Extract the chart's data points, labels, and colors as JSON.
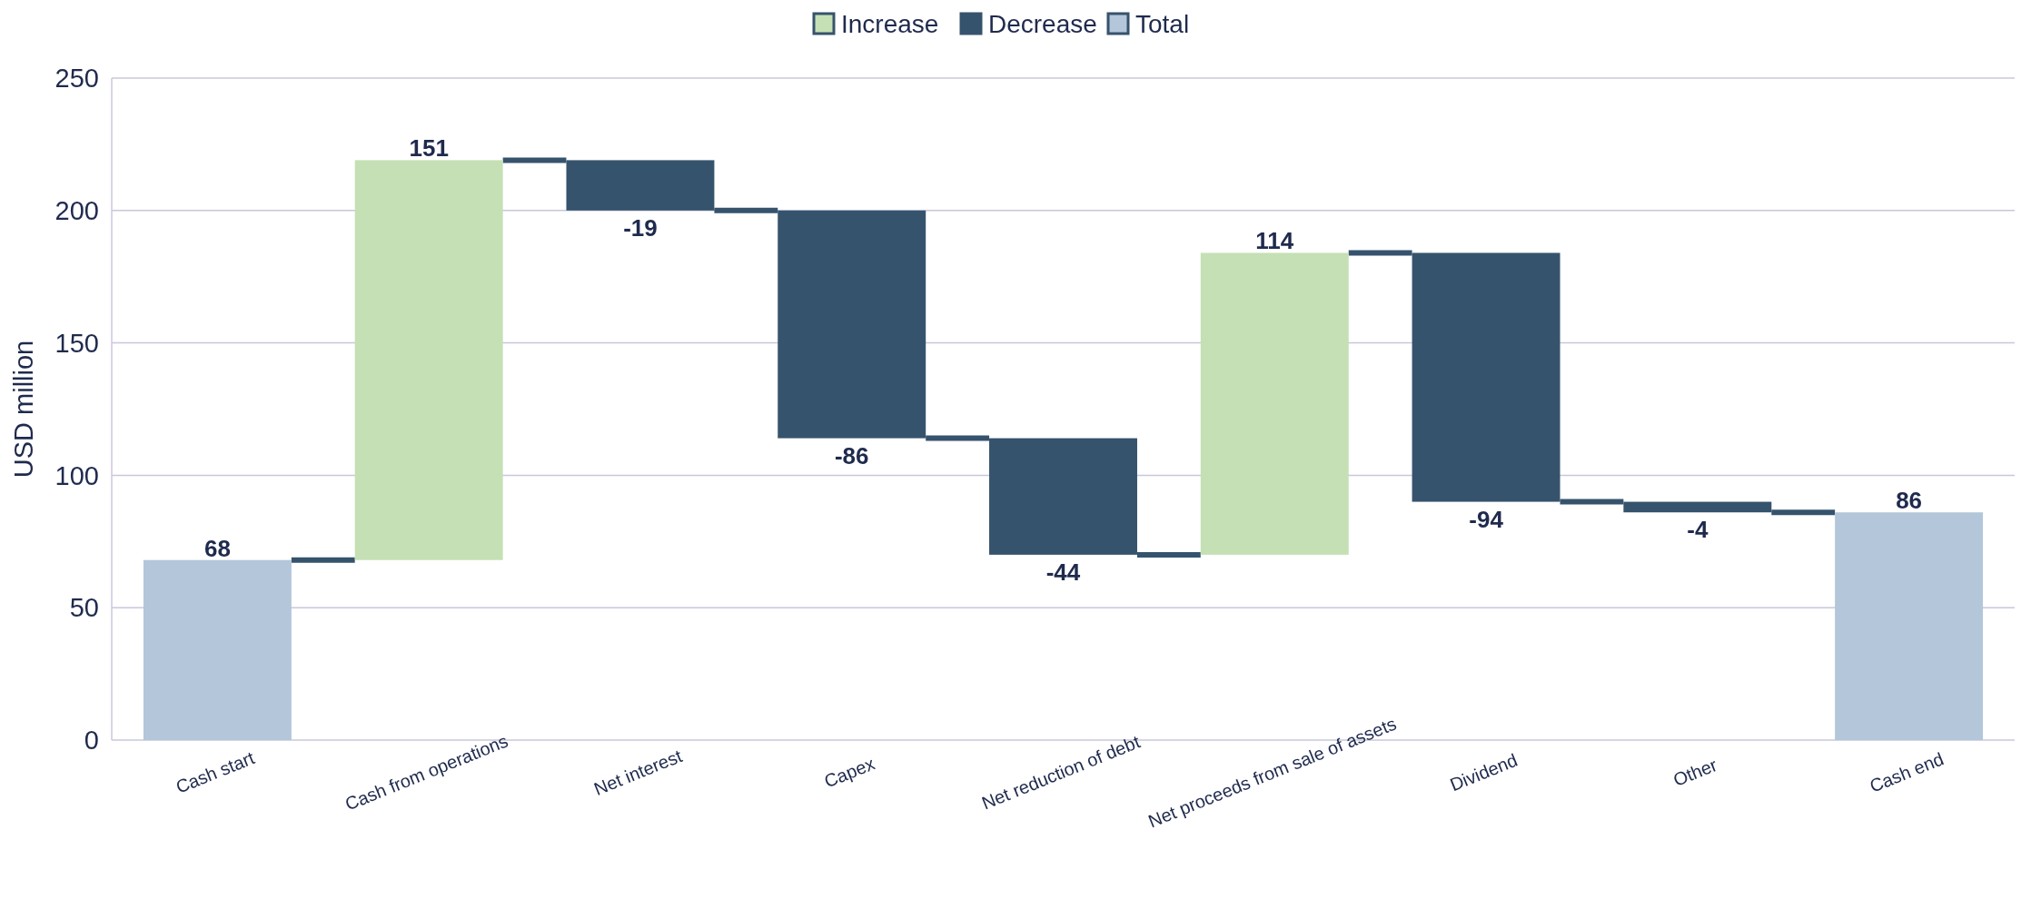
{
  "chart_data": {
    "type": "bar",
    "ylabel": "USD million",
    "categories": [
      "Cash start",
      "Cash from operations",
      "Net interest",
      "Capex",
      "Net reduction of debt",
      "Net proceeds from sale of assets",
      "Dividend",
      "Other",
      "Cash end"
    ],
    "series": [
      {
        "name": "Increase",
        "color": "#c5e0b4",
        "values": [
          null,
          151,
          null,
          null,
          null,
          114,
          null,
          null,
          null
        ],
        "base": [
          null,
          68,
          null,
          null,
          null,
          70,
          null,
          null,
          null
        ]
      },
      {
        "name": "Decrease",
        "color": "#36536d",
        "values": [
          null,
          null,
          -19,
          -86,
          -44,
          null,
          -94,
          -4,
          null
        ],
        "base": [
          null,
          null,
          219,
          200,
          114,
          null,
          184,
          90,
          null
        ]
      },
      {
        "name": "Total",
        "color": "#b3c6da",
        "values": [
          68,
          null,
          null,
          null,
          null,
          null,
          null,
          null,
          86
        ],
        "base": [
          0,
          null,
          null,
          null,
          null,
          null,
          null,
          null,
          0
        ]
      }
    ],
    "ylim": [
      0,
      250
    ],
    "yticks": [
      0,
      50,
      100,
      150,
      200,
      250
    ],
    "grid": "y",
    "legend": "top",
    "data_labels": true
  }
}
